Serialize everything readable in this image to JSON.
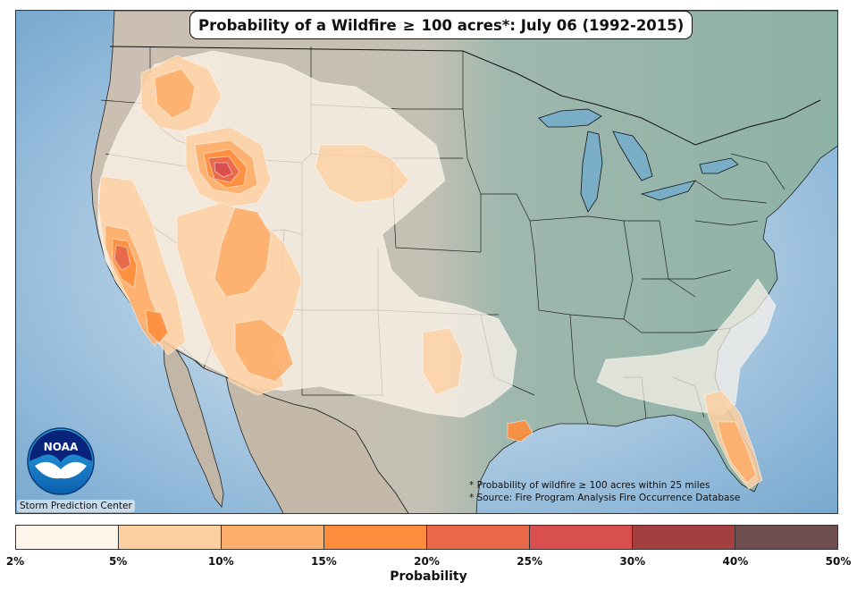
{
  "title_prefix": "Probability of a Wildfire",
  "title_symbol": "≥",
  "title_suffix": "100 acres*: July 06 (1992-2015)",
  "notes": {
    "line1": "* Probability of wildfire  ≥ 100 acres within 25 miles",
    "line2": "* Source: Fire Program Analysis Fire Occurrence Database"
  },
  "credit": "Storm Prediction Center",
  "logo_text": "NOAA",
  "colorbar": {
    "label": "Probability",
    "ticks": [
      "2%",
      "5%",
      "10%",
      "15%",
      "20%",
      "25%",
      "30%",
      "40%",
      "50%"
    ],
    "colors": [
      "#fff5eb",
      "#fdd0a2",
      "#fdae6b",
      "#fd8d3c",
      "#e9694a",
      "#d94e4e",
      "#a33f3f",
      "#6e4e4e"
    ]
  },
  "colors": {
    "ocean": "#6fa3cc",
    "land_east": "#8fb3a8",
    "land_west": "#c8c0b4"
  }
}
